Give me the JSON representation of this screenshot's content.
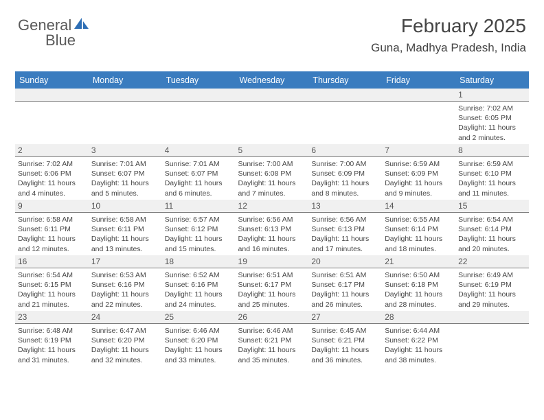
{
  "brand": {
    "text_a": "General",
    "text_b": "Blue",
    "color_a": "#6a6a6a",
    "color_b": "#2d6eb5"
  },
  "title": "February 2025",
  "location": "Guna, Madhya Pradesh, India",
  "colors": {
    "header_bg": "#3a7cbf",
    "header_text": "#ffffff",
    "daynum_bg": "#f0f0f0",
    "daynum_border": "#7a7a7a",
    "body_text": "#464646",
    "page_bg": "#ffffff"
  },
  "day_names": [
    "Sunday",
    "Monday",
    "Tuesday",
    "Wednesday",
    "Thursday",
    "Friday",
    "Saturday"
  ],
  "weeks": [
    {
      "nums": [
        "",
        "",
        "",
        "",
        "",
        "",
        "1"
      ],
      "details": [
        "",
        "",
        "",
        "",
        "",
        "",
        "Sunrise: 7:02 AM\nSunset: 6:05 PM\nDaylight: 11 hours and 2 minutes."
      ]
    },
    {
      "nums": [
        "2",
        "3",
        "4",
        "5",
        "6",
        "7",
        "8"
      ],
      "details": [
        "Sunrise: 7:02 AM\nSunset: 6:06 PM\nDaylight: 11 hours and 4 minutes.",
        "Sunrise: 7:01 AM\nSunset: 6:07 PM\nDaylight: 11 hours and 5 minutes.",
        "Sunrise: 7:01 AM\nSunset: 6:07 PM\nDaylight: 11 hours and 6 minutes.",
        "Sunrise: 7:00 AM\nSunset: 6:08 PM\nDaylight: 11 hours and 7 minutes.",
        "Sunrise: 7:00 AM\nSunset: 6:09 PM\nDaylight: 11 hours and 8 minutes.",
        "Sunrise: 6:59 AM\nSunset: 6:09 PM\nDaylight: 11 hours and 9 minutes.",
        "Sunrise: 6:59 AM\nSunset: 6:10 PM\nDaylight: 11 hours and 11 minutes."
      ]
    },
    {
      "nums": [
        "9",
        "10",
        "11",
        "12",
        "13",
        "14",
        "15"
      ],
      "details": [
        "Sunrise: 6:58 AM\nSunset: 6:11 PM\nDaylight: 11 hours and 12 minutes.",
        "Sunrise: 6:58 AM\nSunset: 6:11 PM\nDaylight: 11 hours and 13 minutes.",
        "Sunrise: 6:57 AM\nSunset: 6:12 PM\nDaylight: 11 hours and 15 minutes.",
        "Sunrise: 6:56 AM\nSunset: 6:13 PM\nDaylight: 11 hours and 16 minutes.",
        "Sunrise: 6:56 AM\nSunset: 6:13 PM\nDaylight: 11 hours and 17 minutes.",
        "Sunrise: 6:55 AM\nSunset: 6:14 PM\nDaylight: 11 hours and 18 minutes.",
        "Sunrise: 6:54 AM\nSunset: 6:14 PM\nDaylight: 11 hours and 20 minutes."
      ]
    },
    {
      "nums": [
        "16",
        "17",
        "18",
        "19",
        "20",
        "21",
        "22"
      ],
      "details": [
        "Sunrise: 6:54 AM\nSunset: 6:15 PM\nDaylight: 11 hours and 21 minutes.",
        "Sunrise: 6:53 AM\nSunset: 6:16 PM\nDaylight: 11 hours and 22 minutes.",
        "Sunrise: 6:52 AM\nSunset: 6:16 PM\nDaylight: 11 hours and 24 minutes.",
        "Sunrise: 6:51 AM\nSunset: 6:17 PM\nDaylight: 11 hours and 25 minutes.",
        "Sunrise: 6:51 AM\nSunset: 6:17 PM\nDaylight: 11 hours and 26 minutes.",
        "Sunrise: 6:50 AM\nSunset: 6:18 PM\nDaylight: 11 hours and 28 minutes.",
        "Sunrise: 6:49 AM\nSunset: 6:19 PM\nDaylight: 11 hours and 29 minutes."
      ]
    },
    {
      "nums": [
        "23",
        "24",
        "25",
        "26",
        "27",
        "28",
        ""
      ],
      "details": [
        "Sunrise: 6:48 AM\nSunset: 6:19 PM\nDaylight: 11 hours and 31 minutes.",
        "Sunrise: 6:47 AM\nSunset: 6:20 PM\nDaylight: 11 hours and 32 minutes.",
        "Sunrise: 6:46 AM\nSunset: 6:20 PM\nDaylight: 11 hours and 33 minutes.",
        "Sunrise: 6:46 AM\nSunset: 6:21 PM\nDaylight: 11 hours and 35 minutes.",
        "Sunrise: 6:45 AM\nSunset: 6:21 PM\nDaylight: 11 hours and 36 minutes.",
        "Sunrise: 6:44 AM\nSunset: 6:22 PM\nDaylight: 11 hours and 38 minutes.",
        ""
      ]
    }
  ]
}
